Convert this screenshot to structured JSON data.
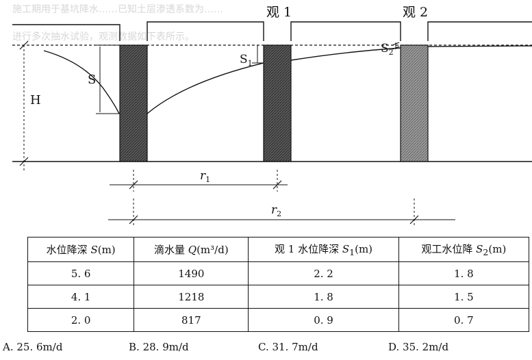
{
  "background_text": [
    "施工期用于基坑降水……已知土层渗透系数为……",
    "进行多次抽水试验，观测数据如下表所示。"
  ],
  "diagram": {
    "labels": {
      "obs1": "观 1",
      "obs2": "观 2",
      "H": "H",
      "S": "S",
      "S1": "S",
      "S1_sub": "1",
      "S2": "S",
      "S2_sub": "2",
      "r1": "r",
      "r1_sub": "1",
      "r2": "r",
      "r2_sub": "2"
    }
  },
  "table": {
    "headers": [
      {
        "pre": "水位降深 ",
        "var": "S",
        "post": "(m)"
      },
      {
        "pre": "滴水量 ",
        "var": "Q",
        "post": "(m³/d)"
      },
      {
        "pre": "观 1 水位降深 ",
        "var": "S",
        "sub": "1",
        "post": "(m)"
      },
      {
        "pre": "观工水位降 ",
        "var": "S",
        "sub": "2",
        "post": "(m)"
      }
    ],
    "rows": [
      [
        "5. 6",
        "1490",
        "2. 2",
        "1. 8"
      ],
      [
        "4. 1",
        "1218",
        "1. 8",
        "1. 5"
      ],
      [
        "2. 0",
        "817",
        "0. 9",
        "0. 7"
      ]
    ]
  },
  "options": [
    {
      "letter": "A.",
      "text": "25. 6m/d"
    },
    {
      "letter": "B.",
      "text": "28. 9m/d"
    },
    {
      "letter": "C.",
      "text": "31. 7m/d"
    },
    {
      "letter": "D.",
      "text": "35. 2m/d"
    }
  ]
}
